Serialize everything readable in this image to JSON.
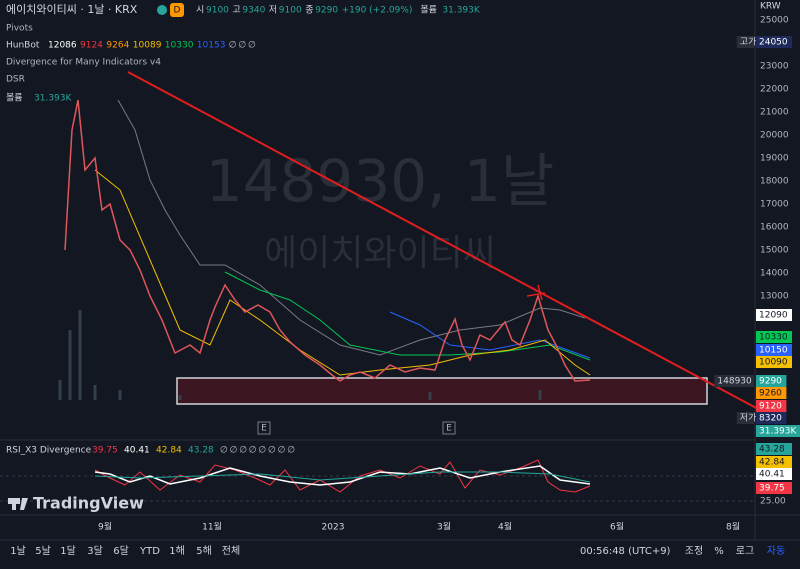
{
  "header": {
    "symbol": "에이치와이티씨 · 1날 · KRX",
    "badge": "D",
    "ohlc": [
      {
        "label": "시",
        "value": "9100"
      },
      {
        "label": "고",
        "value": "9340"
      },
      {
        "label": "저",
        "value": "9100"
      },
      {
        "label": "종",
        "value": "9290"
      }
    ],
    "change": "+190 (+2.09%)",
    "volume_label": "볼륨",
    "volume": "31.393K"
  },
  "indicators": {
    "pivots": "Pivots",
    "hunbot": {
      "name": "HunBot",
      "values": [
        {
          "text": "12086",
          "color": "#ffffff"
        },
        {
          "text": "9124",
          "color": "#f23645"
        },
        {
          "text": "9264",
          "color": "#ff9800"
        },
        {
          "text": "10089",
          "color": "#f5c000"
        },
        {
          "text": "10330",
          "color": "#00c853"
        },
        {
          "text": "10153",
          "color": "#2962ff"
        },
        {
          "text": "∅",
          "color": "#b2b5be"
        },
        {
          "text": "∅",
          "color": "#b2b5be"
        },
        {
          "text": "∅",
          "color": "#b2b5be"
        }
      ]
    },
    "divergence": "Divergence for Many Indicators v4",
    "dsr": "DSR",
    "volume": {
      "name": "볼륨",
      "value": "31.393K"
    }
  },
  "watermark": {
    "line1": "148930, 1날",
    "line2": "에이치와이티씨"
  },
  "event_markers": [
    "E",
    "E"
  ],
  "rsi": {
    "name": "RSI_X3 Divergence",
    "values": [
      {
        "text": "39.75",
        "color": "#f23645"
      },
      {
        "text": "40.41",
        "color": "#ffffff"
      },
      {
        "text": "42.84",
        "color": "#f5c000"
      },
      {
        "text": "43.28",
        "color": "#26a69a"
      },
      {
        "text": "∅",
        "color": "#b2b5be"
      },
      {
        "text": "∅",
        "color": "#b2b5be"
      },
      {
        "text": "∅",
        "color": "#b2b5be"
      },
      {
        "text": "∅",
        "color": "#b2b5be"
      },
      {
        "text": "∅",
        "color": "#b2b5be"
      },
      {
        "text": "∅",
        "color": "#b2b5be"
      },
      {
        "text": "∅",
        "color": "#b2b5be"
      },
      {
        "text": "∅",
        "color": "#b2b5be"
      }
    ]
  },
  "logo": "TradingView",
  "price_axis": {
    "currency": "KRW",
    "labels": [
      25000,
      23000,
      22000,
      21000,
      20000,
      19000,
      18000,
      17000,
      16000,
      15000,
      14000,
      13000
    ],
    "badges": [
      {
        "prefix": "고가",
        "text": "24050",
        "bg": "#1e2a5a",
        "fg": "#ffffff"
      },
      {
        "text": "12090",
        "bg": "#ffffff",
        "fg": "#131722"
      },
      {
        "text": "10330",
        "bg": "#00c853",
        "fg": "#131722"
      },
      {
        "text": "10150",
        "bg": "#2962ff",
        "fg": "#ffffff"
      },
      {
        "text": "10090",
        "bg": "#f5c000",
        "fg": "#131722"
      },
      {
        "prefix": "148930",
        "text": "9290",
        "bg": "#26a69a",
        "fg": "#ffffff"
      },
      {
        "text": "9260",
        "bg": "#ff9800",
        "fg": "#131722"
      },
      {
        "text": "9120",
        "bg": "#f23645",
        "fg": "#ffffff"
      },
      {
        "prefix": "저가",
        "text": "8320",
        "bg": "#1e2a5a",
        "fg": "#ffffff"
      },
      {
        "text": "31.393K",
        "bg": "#26a69a",
        "fg": "#ffffff"
      }
    ]
  },
  "rsi_axis": {
    "badges": [
      {
        "text": "43.28",
        "bg": "#26a69a",
        "fg": "#131722"
      },
      {
        "text": "42.84",
        "bg": "#f5c000",
        "fg": "#131722"
      },
      {
        "text": "40.41",
        "bg": "#ffffff",
        "fg": "#131722"
      },
      {
        "text": "39.75",
        "bg": "#f23645",
        "fg": "#ffffff"
      }
    ],
    "labels": [
      "25.00"
    ]
  },
  "time_axis": [
    "9월",
    "11월",
    "2023",
    "3월",
    "4월",
    "6월",
    "8월"
  ],
  "toolbar": {
    "ranges": [
      "1날",
      "5날",
      "1달",
      "3달",
      "6달",
      "YTD",
      "1해",
      "5해",
      "전체"
    ],
    "clock": "00:56:48 (UTC+9)",
    "options": [
      "조정",
      "%",
      "로그",
      "자동"
    ]
  }
}
